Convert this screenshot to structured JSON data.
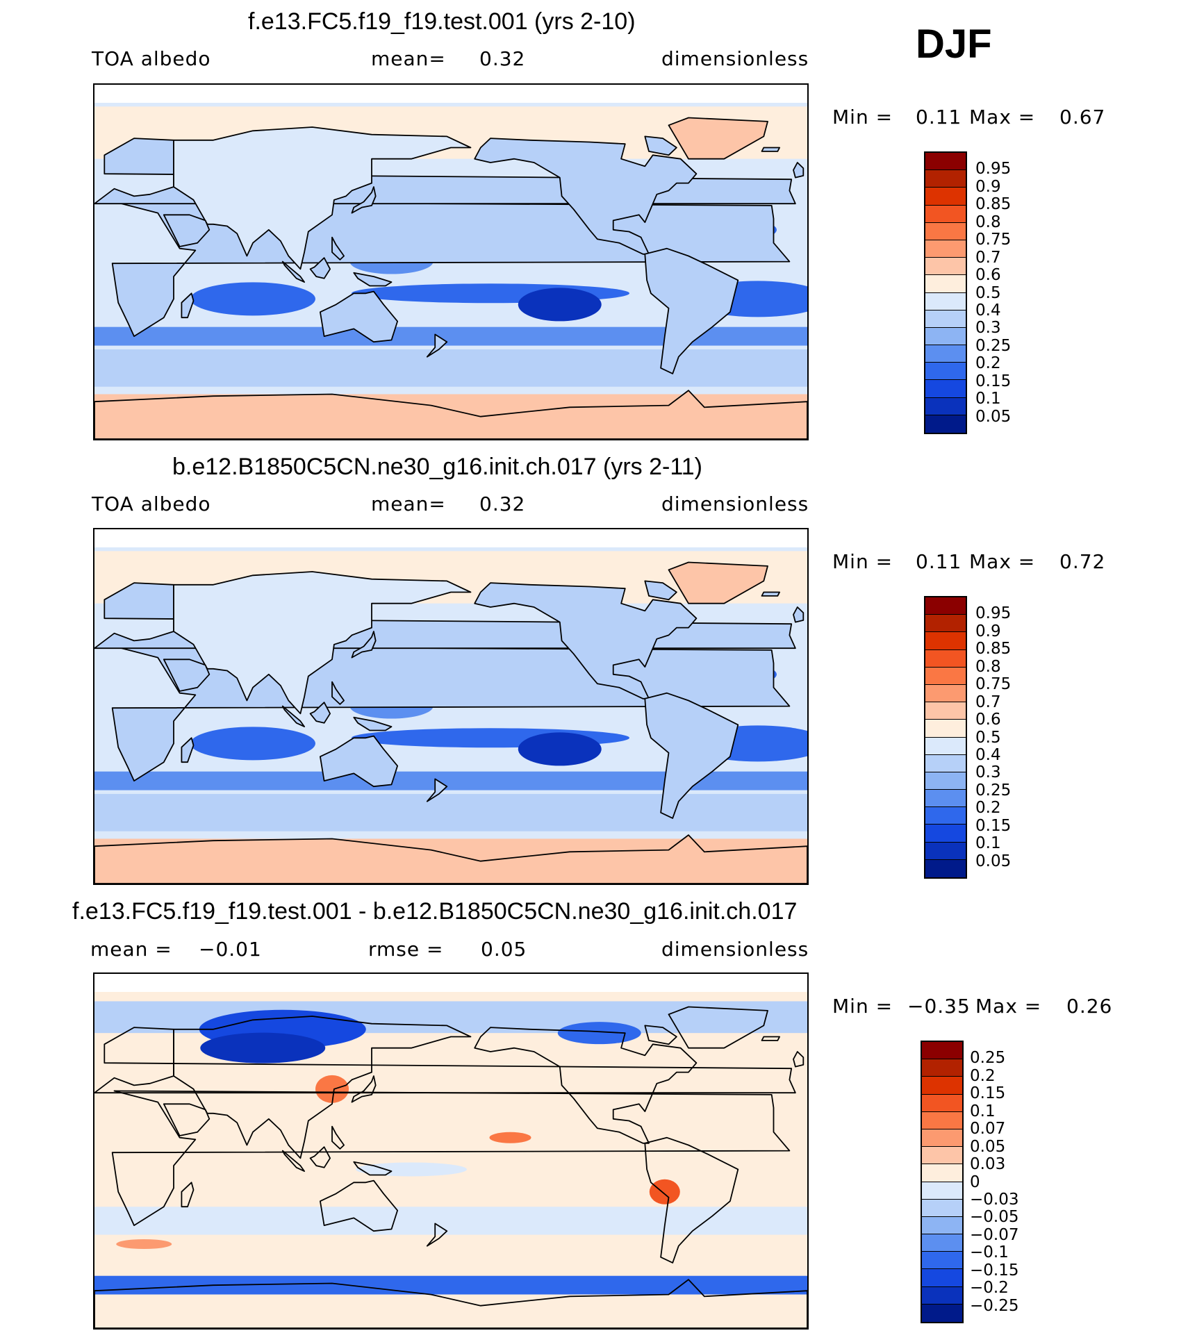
{
  "season": "DJF",
  "panels": [
    {
      "title": "f.e13.FC5.f19_f19.test.001 (yrs 2-10)",
      "left_label": "TOA albedo",
      "stat_label": "mean=",
      "stat_value": "0.32",
      "stat2_label": "",
      "stat2_value": "",
      "units": "dimensionless",
      "min_label": "Min =",
      "min_value": "0.11",
      "max_label": "Max =",
      "max_value": "0.67",
      "style": "model"
    },
    {
      "title": "b.e12.B1850C5CN.ne30_g16.init.ch.017 (yrs 2-11)",
      "left_label": "TOA albedo",
      "stat_label": "mean=",
      "stat_value": "0.32",
      "stat2_label": "",
      "stat2_value": "",
      "units": "dimensionless",
      "min_label": "Min =",
      "min_value": "0.11",
      "max_label": "Max =",
      "max_value": "0.72",
      "style": "model"
    },
    {
      "title": "f.e13.FC5.f19_f19.test.001 - b.e12.B1850C5CN.ne30_g16.init.ch.017",
      "left_label": "mean =",
      "stat_label": "",
      "stat_value": "−0.01",
      "stat2_label": "rmse =",
      "stat2_value": "0.05",
      "units": "dimensionless",
      "min_label": "Min =",
      "min_value": "−0.35",
      "max_label": "Max =",
      "max_value": "0.26",
      "style": "diff"
    }
  ],
  "colorbar_model": {
    "labels": [
      "0.95",
      "0.9",
      "0.85",
      "0.8",
      "0.75",
      "0.7",
      "0.6",
      "0.5",
      "0.4",
      "0.3",
      "0.25",
      "0.2",
      "0.15",
      "0.1",
      "0.05"
    ],
    "colors": [
      "#8b0000",
      "#b22200",
      "#dd3300",
      "#f25522",
      "#fa7744",
      "#fc9a70",
      "#fdc5a8",
      "#feeedd",
      "#dbe9fb",
      "#b6d0f8",
      "#8db4f3",
      "#5c8ff0",
      "#2f68ec",
      "#1548e0",
      "#0a32bc",
      "#001a8a"
    ]
  },
  "colorbar_diff": {
    "labels": [
      "0.25",
      "0.2",
      "0.15",
      "0.1",
      "0.07",
      "0.05",
      "0.03",
      "0",
      "−0.03",
      "−0.05",
      "−0.07",
      "−0.1",
      "−0.15",
      "−0.2",
      "−0.25"
    ],
    "colors": [
      "#8b0000",
      "#b22200",
      "#dd3300",
      "#f25522",
      "#fa7744",
      "#fc9a70",
      "#fdc5a8",
      "#feeedd",
      "#dbe9fb",
      "#b6d0f8",
      "#8db4f3",
      "#5c8ff0",
      "#2f68ec",
      "#1548e0",
      "#0a32bc",
      "#001a8a"
    ]
  }
}
